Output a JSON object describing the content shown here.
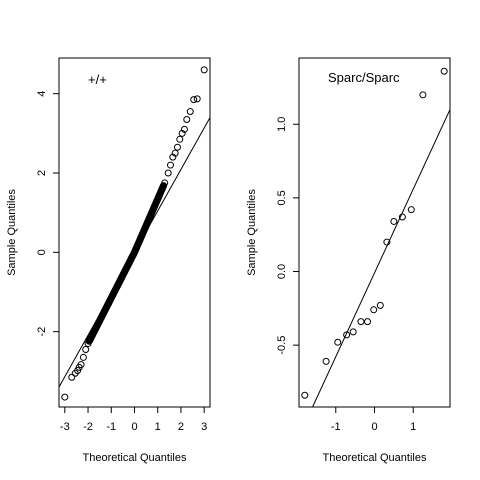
{
  "chart_data": [
    {
      "type": "scatter",
      "title": "+/+",
      "xlabel": "Theoretical Quantiles",
      "ylabel": "Sample Quantiles",
      "xlim": [
        -3.25,
        3.25
      ],
      "ylim": [
        -3.9,
        4.9
      ],
      "xticks": [
        -3,
        -2,
        -1,
        0,
        1,
        2,
        3
      ],
      "yticks": [
        -2,
        0,
        2,
        4
      ],
      "grid": false,
      "reference_line": {
        "x": [
          -3.3,
          3.3
        ],
        "y": [
          -3.45,
          3.45
        ]
      },
      "outliers": {
        "x": [
          -3.0,
          -2.7,
          -2.55,
          -2.45,
          -2.38,
          -2.3,
          -2.2,
          -2.1,
          -2.0,
          1.3,
          1.45,
          1.55,
          1.65,
          1.75,
          1.85,
          1.95,
          2.05,
          2.15,
          2.25,
          2.4,
          2.55,
          2.7,
          3.0
        ],
        "y": [
          -3.65,
          -3.15,
          -3.05,
          -2.98,
          -2.9,
          -2.83,
          -2.65,
          -2.45,
          -2.3,
          1.75,
          2.0,
          2.2,
          2.4,
          2.5,
          2.65,
          2.85,
          3.0,
          3.1,
          3.35,
          3.55,
          3.85,
          3.87,
          4.6
        ]
      },
      "body": {
        "x_from": -1.95,
        "x_to": 1.25,
        "count": 260,
        "anchors_x": [
          -2.0,
          0.0,
          1.3
        ],
        "anchors_y": [
          -2.3,
          0.0,
          1.75
        ]
      }
    },
    {
      "type": "scatter",
      "title": "Sparc/Sparc",
      "xlabel": "Theoretical Quantiles",
      "ylabel": "Sample Quantiles",
      "xlim": [
        -1.95,
        1.95
      ],
      "ylim": [
        -0.92,
        1.45
      ],
      "xticks": [
        -1,
        0,
        1
      ],
      "yticks": [
        -0.5,
        0.0,
        0.5,
        1.0
      ],
      "ytick_labels": [
        "-0.5",
        "0.0",
        "0.5",
        "1.0"
      ],
      "grid": false,
      "reference_line": {
        "x": [
          -1.6,
          1.95
        ],
        "y": [
          -0.92,
          1.1
        ]
      },
      "x": [
        -1.8,
        -1.25,
        -0.95,
        -0.72,
        -0.55,
        -0.35,
        -0.18,
        -0.02,
        0.15,
        0.32,
        0.5,
        0.72,
        0.95,
        1.25,
        1.8
      ],
      "y": [
        -0.84,
        -0.61,
        -0.48,
        -0.43,
        -0.41,
        -0.34,
        -0.34,
        -0.26,
        -0.23,
        0.2,
        0.34,
        0.37,
        0.42,
        1.2,
        1.36
      ]
    }
  ]
}
